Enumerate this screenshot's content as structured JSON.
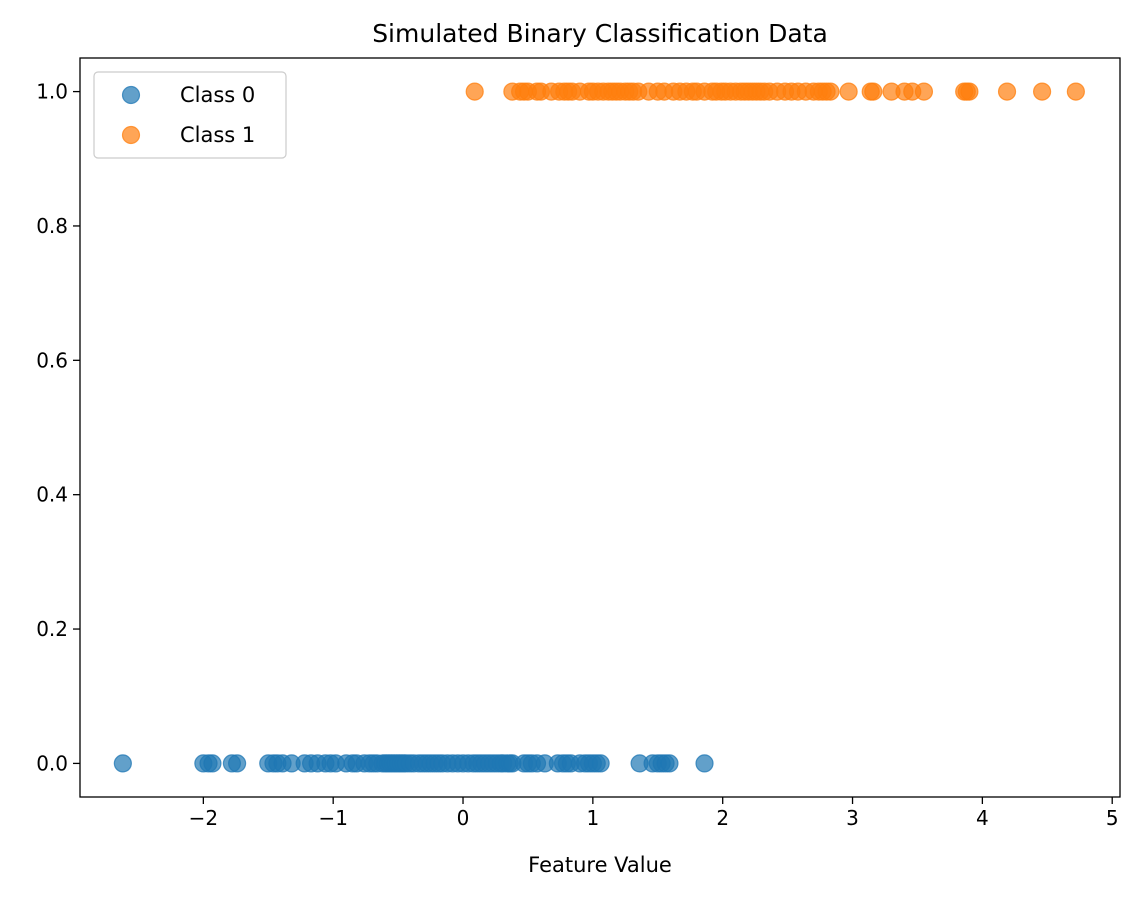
{
  "chart_data": {
    "type": "scatter",
    "title": "Simulated Binary Classification Data",
    "xlabel": "Feature Value",
    "ylabel": "",
    "xlim": [
      -2.95,
      5.06
    ],
    "ylim": [
      -0.05,
      1.05
    ],
    "x_ticks": [
      -2,
      -1,
      0,
      1,
      2,
      3,
      4,
      5
    ],
    "x_tick_labels": [
      "−2",
      "−1",
      "0",
      "1",
      "2",
      "3",
      "4",
      "5"
    ],
    "y_ticks": [
      0.0,
      0.2,
      0.4,
      0.6,
      0.8,
      1.0
    ],
    "y_tick_labels": [
      "0.0",
      "0.2",
      "0.4",
      "0.6",
      "0.8",
      "1.0"
    ],
    "grid": false,
    "legend_position": "top-left",
    "series": [
      {
        "name": "Class 0",
        "color": "#1f77b4",
        "y": 0,
        "x": [
          -2.62,
          -2.0,
          -1.96,
          -1.93,
          -1.78,
          -1.74,
          -1.5,
          -1.46,
          -1.43,
          -1.39,
          -1.32,
          -1.22,
          -1.17,
          -1.12,
          -1.06,
          -1.02,
          -0.98,
          -0.9,
          -0.85,
          -0.82,
          -0.76,
          -0.72,
          -0.69,
          -0.66,
          -0.62,
          -0.6,
          -0.58,
          -0.56,
          -0.54,
          -0.52,
          -0.5,
          -0.48,
          -0.46,
          -0.44,
          -0.41,
          -0.38,
          -0.34,
          -0.31,
          -0.28,
          -0.25,
          -0.22,
          -0.19,
          -0.16,
          -0.12,
          -0.08,
          -0.04,
          0.0,
          0.04,
          0.08,
          0.11,
          0.14,
          0.17,
          0.2,
          0.23,
          0.26,
          0.29,
          0.31,
          0.34,
          0.36,
          0.38,
          0.47,
          0.5,
          0.53,
          0.57,
          0.63,
          0.73,
          0.77,
          0.8,
          0.83,
          0.9,
          0.94,
          0.97,
          1.0,
          1.03,
          1.06,
          1.36,
          1.46,
          1.5,
          1.53,
          1.56,
          1.59,
          1.86
        ]
      },
      {
        "name": "Class 1",
        "color": "#ff7f0e",
        "y": 1,
        "x": [
          0.09,
          0.38,
          0.44,
          0.47,
          0.5,
          0.57,
          0.6,
          0.68,
          0.74,
          0.78,
          0.81,
          0.84,
          0.9,
          0.97,
          1.0,
          1.04,
          1.08,
          1.12,
          1.15,
          1.18,
          1.21,
          1.25,
          1.28,
          1.31,
          1.35,
          1.43,
          1.5,
          1.55,
          1.62,
          1.67,
          1.72,
          1.77,
          1.8,
          1.86,
          1.92,
          1.95,
          1.99,
          2.02,
          2.06,
          2.1,
          2.14,
          2.17,
          2.2,
          2.23,
          2.26,
          2.29,
          2.32,
          2.36,
          2.42,
          2.48,
          2.53,
          2.58,
          2.64,
          2.7,
          2.74,
          2.77,
          2.8,
          2.83,
          2.97,
          3.14,
          3.16,
          3.3,
          3.4,
          3.46,
          3.55,
          3.86,
          3.88,
          3.9,
          4.19,
          4.46,
          4.72
        ]
      }
    ]
  }
}
